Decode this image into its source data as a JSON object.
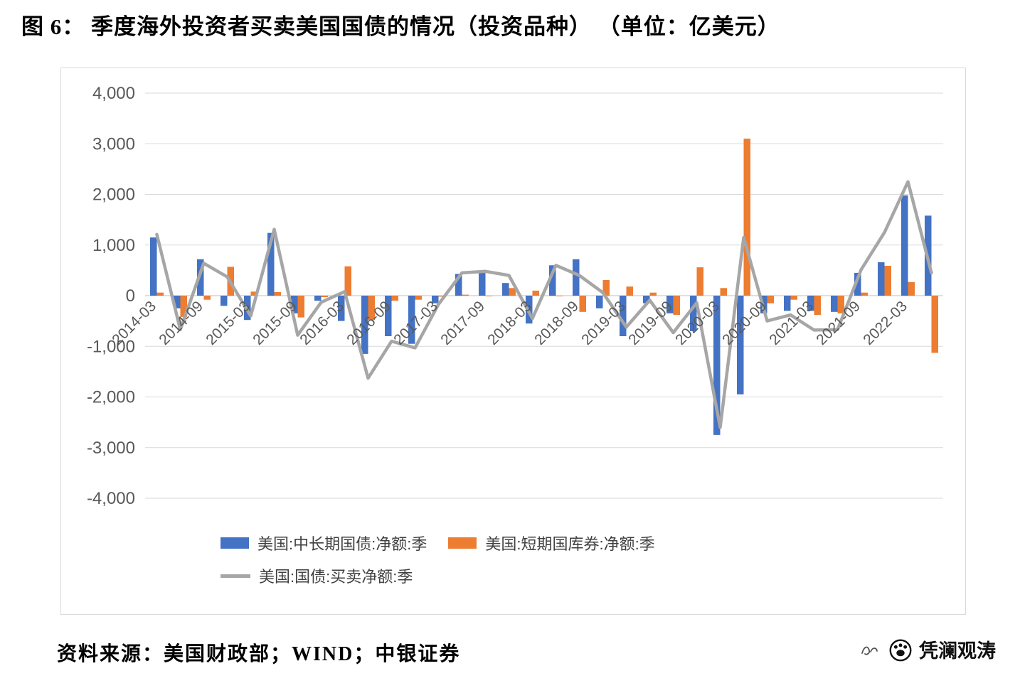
{
  "page": {
    "title": "图 6：  季度海外投资者买卖美国国债的情况（投资品种） （单位：亿美元）",
    "source": "资料来源：美国财政部；WIND；中银证券",
    "watermark": "凭澜观涛"
  },
  "chart_data": {
    "type": "combo_bar_line",
    "title": "季度海外投资者买卖美国国债的情况（投资品种）",
    "unit": "亿美元",
    "grid": true,
    "legend_position": "bottom",
    "ylim": [
      -4000,
      4000
    ],
    "y_ticks": [
      -4000,
      -3000,
      -2000,
      -1000,
      0,
      1000,
      2000,
      3000,
      4000
    ],
    "x_label_every": 2,
    "categories": [
      "2014-03",
      "2014-06",
      "2014-09",
      "2014-12",
      "2015-03",
      "2015-06",
      "2015-09",
      "2015-12",
      "2016-03",
      "2016-06",
      "2016-09",
      "2016-12",
      "2017-03",
      "2017-06",
      "2017-09",
      "2017-12",
      "2018-03",
      "2018-06",
      "2018-09",
      "2018-12",
      "2019-03",
      "2019-06",
      "2019-09",
      "2019-12",
      "2020-03",
      "2020-06",
      "2020-09",
      "2020-12",
      "2021-03",
      "2021-06",
      "2021-09",
      "2021-12",
      "2022-03",
      "2022-06"
    ],
    "series": [
      {
        "name": "美国:中长期国债:净额:季",
        "type": "bar",
        "color": "#4472C4",
        "values": [
          1150,
          -250,
          720,
          -200,
          -480,
          1240,
          -350,
          -100,
          -500,
          -1150,
          -800,
          -950,
          -150,
          430,
          480,
          250,
          -550,
          600,
          720,
          -250,
          -800,
          -150,
          -350,
          -700,
          -2750,
          -1950,
          -350,
          -300,
          -300,
          -320,
          450,
          660,
          1980,
          1580
        ]
      },
      {
        "name": "美国:短期国库券:净额:季",
        "type": "bar",
        "color": "#ED7D31",
        "values": [
          60,
          -420,
          -80,
          570,
          80,
          70,
          -430,
          -30,
          580,
          -480,
          -100,
          -80,
          -20,
          20,
          0,
          150,
          100,
          0,
          -320,
          310,
          180,
          60,
          -380,
          560,
          150,
          3100,
          -150,
          -80,
          -380,
          -350,
          60,
          590,
          270,
          -1130
        ]
      },
      {
        "name": "美国:国债:买卖净额:季",
        "type": "line",
        "color": "#A6A6A6",
        "values": [
          1210,
          -670,
          640,
          370,
          -400,
          1310,
          -780,
          -130,
          80,
          -1630,
          -900,
          -1030,
          -170,
          450,
          480,
          400,
          -450,
          600,
          400,
          60,
          -620,
          -90,
          -730,
          -140,
          -2600,
          1150,
          -500,
          -380,
          -680,
          -670,
          510,
          1250,
          2250,
          450
        ]
      }
    ]
  }
}
